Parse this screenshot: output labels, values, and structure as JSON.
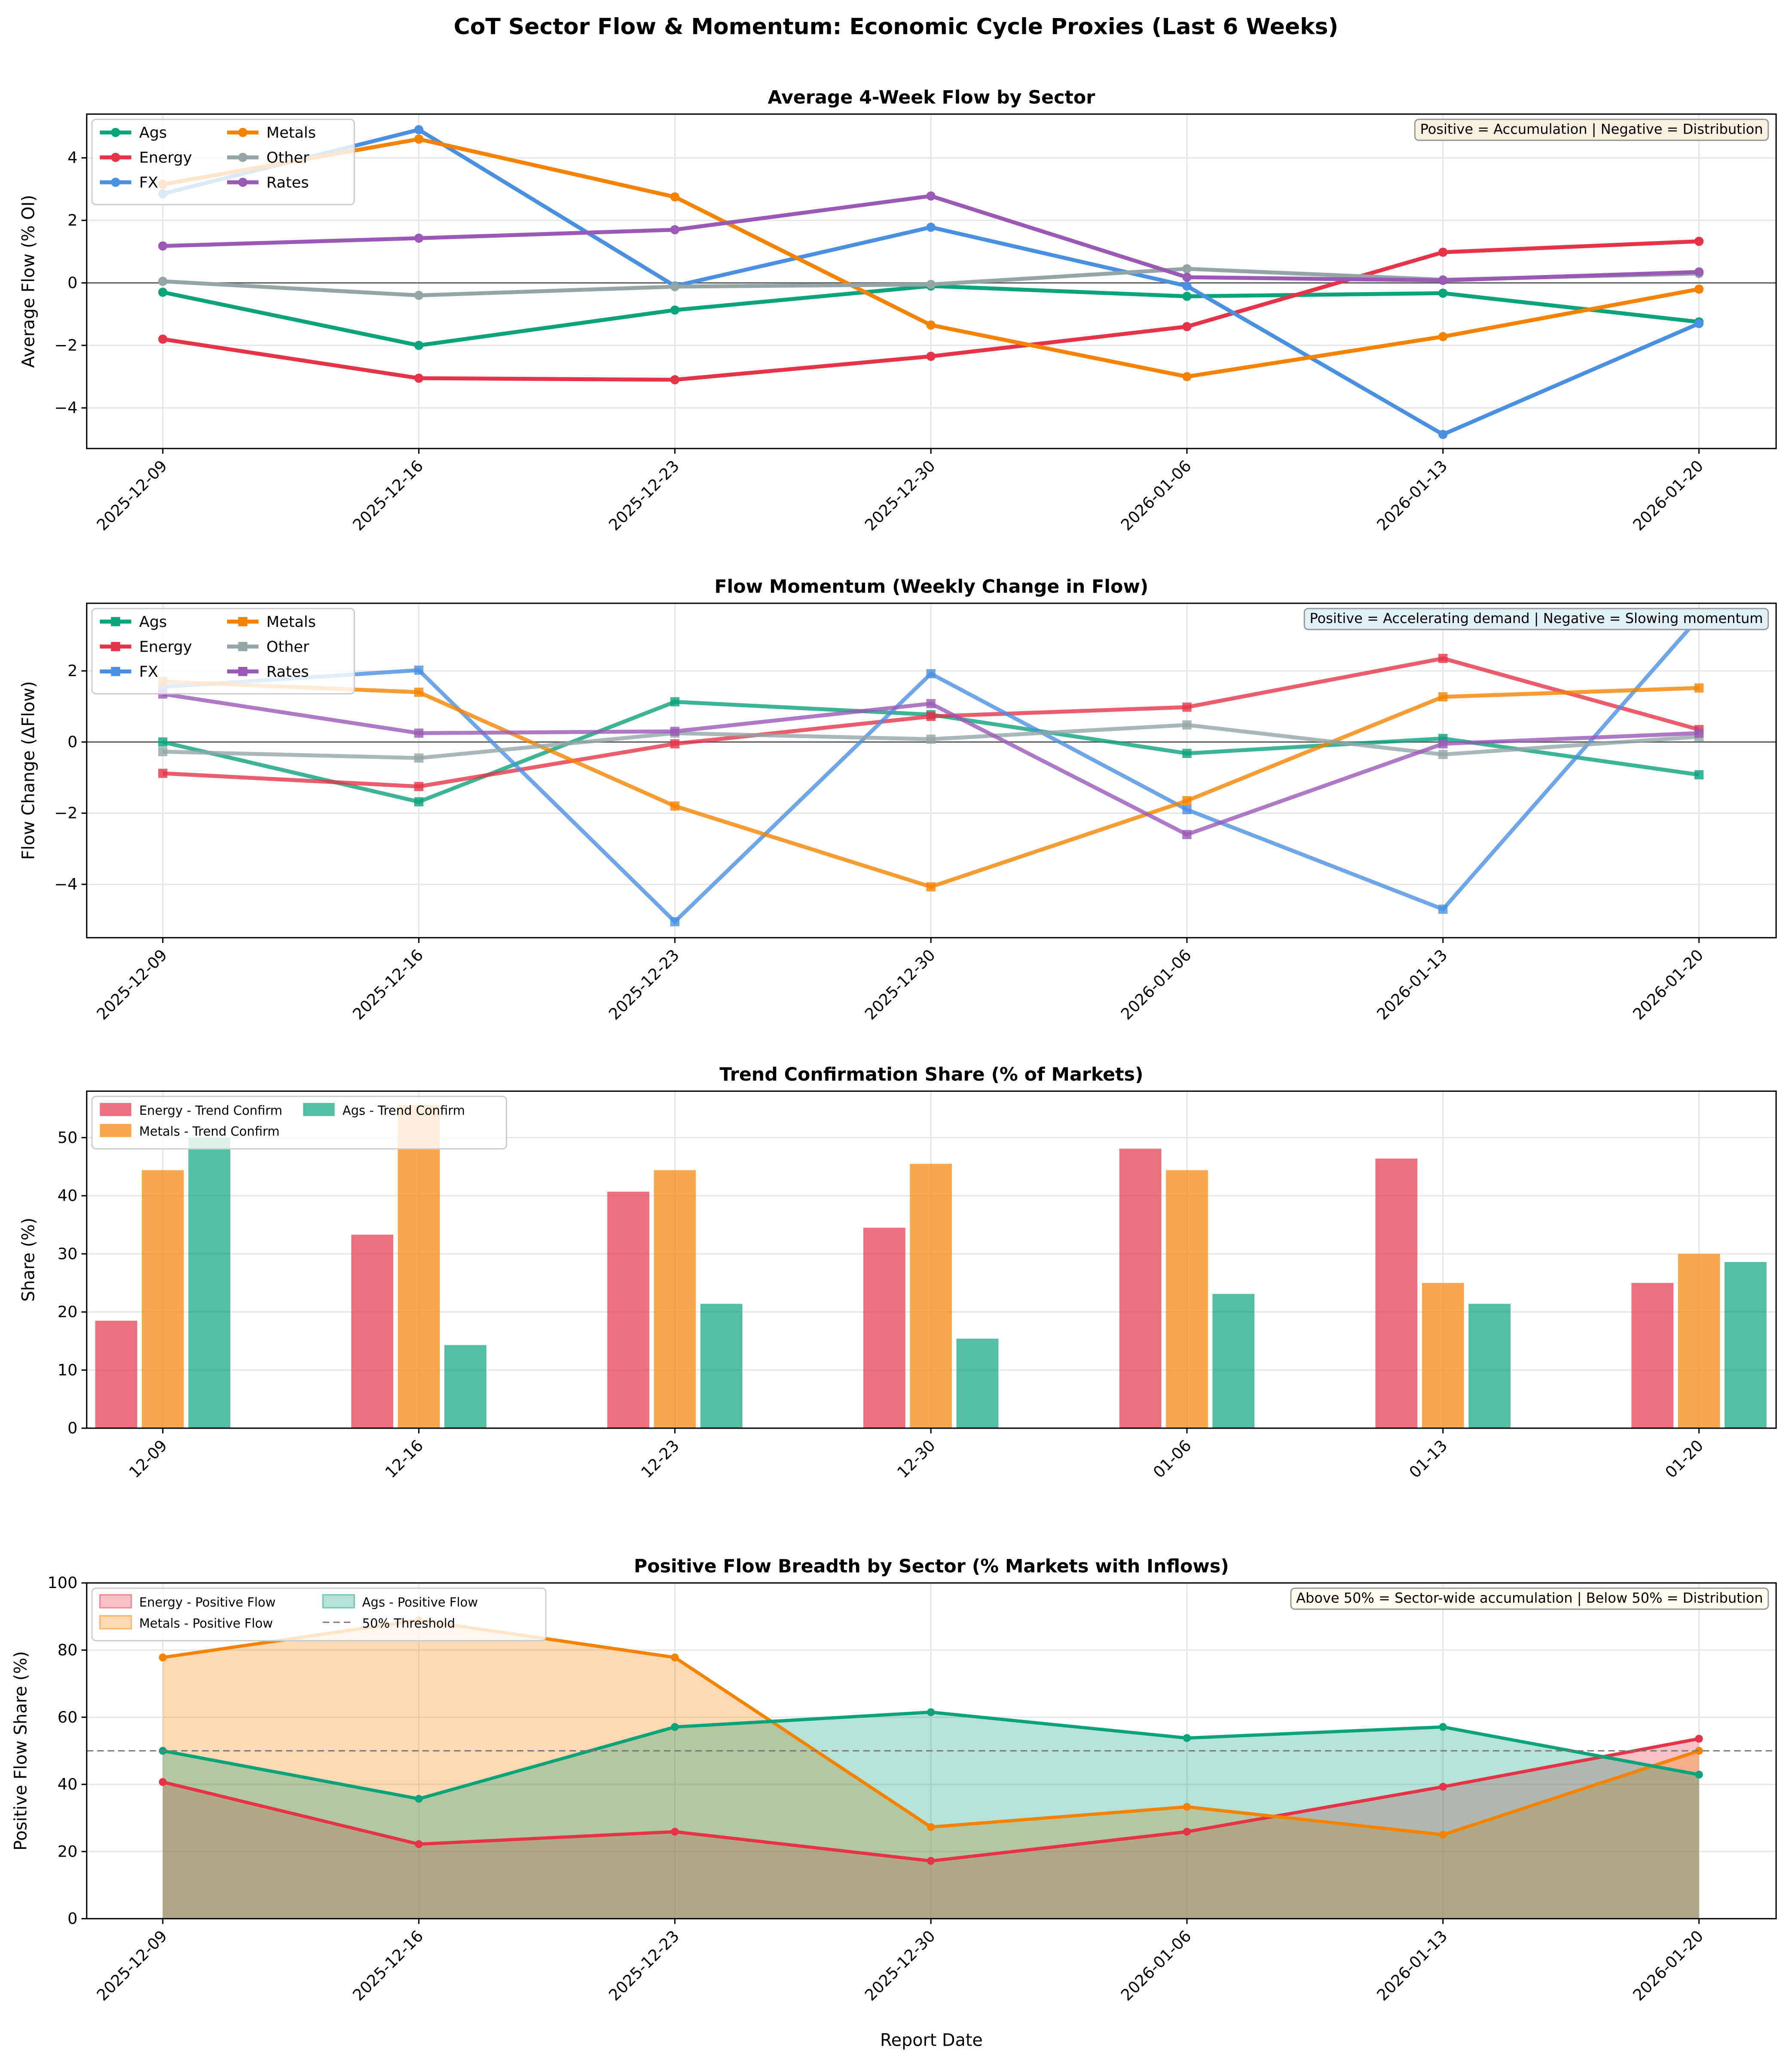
{
  "title": "CoT Sector Flow & Momentum: Economic Cycle Proxies (Last 6 Weeks)",
  "colors": {
    "Ags": "#0aa37a",
    "Energy": "#e63347",
    "FX": "#4a90e2",
    "Metals": "#f58200",
    "Other": "#95a5a6",
    "Rates": "#9b59b6"
  },
  "chart_data": [
    {
      "type": "line",
      "title": "Average 4-Week Flow by Sector",
      "ylabel": "Average Flow (% OI)",
      "xlabel": "",
      "annotation": "Positive = Accumulation | Negative = Distribution",
      "x": [
        "2025-12-09",
        "2025-12-16",
        "2025-12-23",
        "2025-12-30",
        "2026-01-06",
        "2026-01-13",
        "2026-01-20"
      ],
      "ylim": [
        -5.3,
        5.4
      ],
      "yticks": [
        -4,
        -2,
        0,
        2,
        4
      ],
      "grid": true,
      "legend": "top-left",
      "marker": "circle",
      "series": [
        {
          "name": "Ags",
          "values": [
            -0.3,
            -2.0,
            -0.87,
            -0.1,
            -0.43,
            -0.33,
            -1.25
          ]
        },
        {
          "name": "Energy",
          "values": [
            -1.8,
            -3.05,
            -3.1,
            -2.35,
            -1.4,
            0.98,
            1.33
          ]
        },
        {
          "name": "FX",
          "values": [
            2.85,
            4.9,
            -0.1,
            1.78,
            -0.1,
            -4.85,
            -1.3
          ]
        },
        {
          "name": "Metals",
          "values": [
            3.15,
            4.6,
            2.75,
            -1.35,
            -3.0,
            -1.72,
            -0.2
          ]
        },
        {
          "name": "Other",
          "values": [
            0.05,
            -0.4,
            -0.12,
            -0.05,
            0.45,
            0.1,
            0.3
          ]
        },
        {
          "name": "Rates",
          "values": [
            1.18,
            1.43,
            1.7,
            2.78,
            0.18,
            0.08,
            0.35
          ]
        }
      ]
    },
    {
      "type": "line",
      "title": "Flow Momentum (Weekly Change in Flow)",
      "ylabel": "Flow Change (ΔFlow)",
      "xlabel": "",
      "annotation": "Positive = Accelerating demand | Negative = Slowing momentum",
      "x": [
        "2025-12-09",
        "2025-12-16",
        "2025-12-23",
        "2025-12-30",
        "2026-01-06",
        "2026-01-13",
        "2026-01-20"
      ],
      "ylim": [
        -5.5,
        3.9
      ],
      "yticks": [
        -4,
        -2,
        0,
        2
      ],
      "grid": true,
      "legend": "top-left",
      "marker": "square",
      "series": [
        {
          "name": "Ags",
          "values": [
            0.0,
            -1.68,
            1.13,
            0.77,
            -0.32,
            0.1,
            -0.92
          ]
        },
        {
          "name": "Energy",
          "values": [
            -0.88,
            -1.25,
            -0.05,
            0.72,
            0.98,
            2.35,
            0.35
          ]
        },
        {
          "name": "FX",
          "values": [
            1.55,
            2.02,
            -5.05,
            1.92,
            -1.9,
            -4.7,
            3.5
          ]
        },
        {
          "name": "Metals",
          "values": [
            1.7,
            1.4,
            -1.8,
            -4.07,
            -1.65,
            1.27,
            1.52
          ]
        },
        {
          "name": "Other",
          "values": [
            -0.27,
            -0.45,
            0.25,
            0.08,
            0.48,
            -0.35,
            0.15
          ]
        },
        {
          "name": "Rates",
          "values": [
            1.35,
            0.25,
            0.3,
            1.08,
            -2.6,
            -0.05,
            0.25
          ]
        }
      ]
    },
    {
      "type": "bar",
      "title": "Trend Confirmation Share (% of Markets)",
      "ylabel": "Share (%)",
      "xlabel": "",
      "categories": [
        "12-09",
        "12-16",
        "12-23",
        "12-30",
        "01-06",
        "01-13",
        "01-20"
      ],
      "ylim": [
        0,
        58
      ],
      "yticks": [
        0,
        10,
        20,
        30,
        40,
        50
      ],
      "grid": true,
      "legend": "top-left",
      "series": [
        {
          "name": "Energy - Trend Confirm",
          "sector": "Energy",
          "values": [
            18.5,
            33.3,
            40.7,
            34.5,
            48.1,
            46.4,
            25.0
          ]
        },
        {
          "name": "Metals - Trend Confirm",
          "sector": "Metals",
          "values": [
            44.4,
            55.6,
            44.4,
            45.5,
            44.4,
            25.0,
            30.0
          ]
        },
        {
          "name": "Ags - Trend Confirm",
          "sector": "Ags",
          "values": [
            50.0,
            14.3,
            21.4,
            15.4,
            23.1,
            21.4,
            28.6
          ]
        }
      ]
    },
    {
      "type": "area",
      "title": "Positive Flow Breadth by Sector (% Markets with Inflows)",
      "ylabel": "Positive Flow Share (%)",
      "xlabel": "Report Date",
      "annotation": "Above 50% = Sector-wide accumulation | Below 50% = Distribution",
      "x": [
        "2025-12-09",
        "2025-12-16",
        "2025-12-23",
        "2025-12-30",
        "2026-01-06",
        "2026-01-13",
        "2026-01-20"
      ],
      "ylim": [
        0,
        100
      ],
      "yticks": [
        0,
        20,
        40,
        60,
        80,
        100
      ],
      "grid": true,
      "legend": "top-left",
      "threshold": {
        "value": 50,
        "label": "50% Threshold"
      },
      "series": [
        {
          "name": "Energy - Positive Flow",
          "sector": "Energy",
          "values": [
            40.7,
            22.2,
            25.9,
            17.2,
            25.9,
            39.3,
            53.6
          ]
        },
        {
          "name": "Metals - Positive Flow",
          "sector": "Metals",
          "values": [
            77.8,
            88.9,
            77.8,
            27.3,
            33.3,
            25.0,
            50.0
          ]
        },
        {
          "name": "Ags - Positive Flow",
          "sector": "Ags",
          "values": [
            50.0,
            35.7,
            57.1,
            61.5,
            53.8,
            57.1,
            42.9
          ]
        }
      ]
    }
  ]
}
